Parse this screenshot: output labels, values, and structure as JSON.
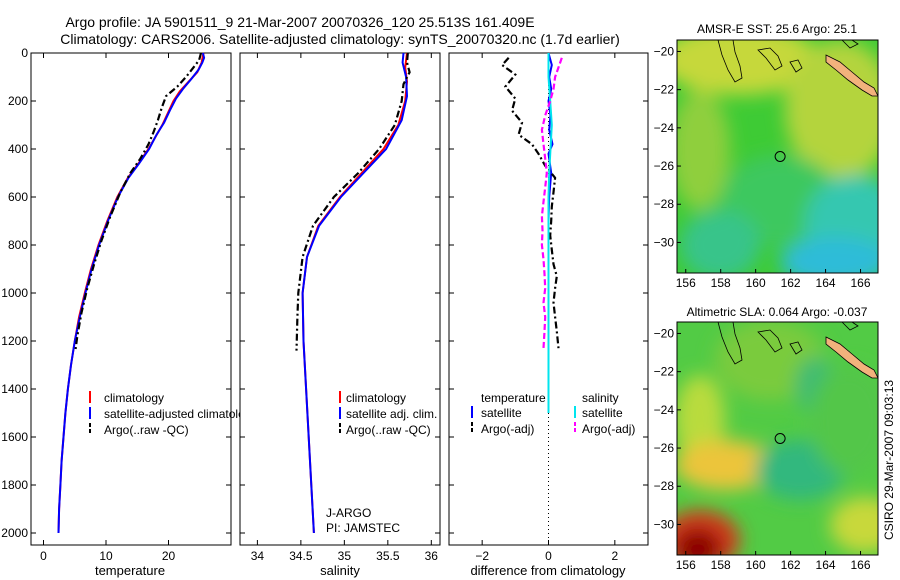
{
  "title_line1": "Argo profile: JA 5901511_9 21-Mar-2007 20070326_120 25.513S 161.409E",
  "title_line2": "Climatology: CARS2006. Satellite-adjusted climatology: synTS_20070320.nc (1.7d earlier)",
  "credit": "CSIRO 29-Mar-2007 09:03:13",
  "colors": {
    "climatology": "#ff0000",
    "satellite": "#0000ff",
    "argo": "#000000",
    "salinity_satellite": "#00e5ee",
    "salinity_argo": "#ff00ff"
  },
  "chart_data": [
    {
      "type": "line",
      "id": "temperature",
      "xlabel": "temperature",
      "ylabel": "",
      "xlim": [
        -2,
        30
      ],
      "ylim": [
        0,
        2050
      ],
      "y_reversed": true,
      "xticks": [
        0,
        10,
        20
      ],
      "yticks": [
        0,
        200,
        400,
        600,
        800,
        1000,
        1200,
        1400,
        1600,
        1800,
        2000
      ],
      "legend": {
        "placement": "lower-right",
        "items": [
          "climatology",
          "satellite-adjusted climatology",
          "Argo(..raw -QC)"
        ]
      },
      "series": [
        {
          "name": "climatology",
          "color": "#ff0000",
          "style": "solid",
          "points": [
            [
              25.6,
              0
            ],
            [
              25.3,
              40
            ],
            [
              24.6,
              80
            ],
            [
              23.2,
              120
            ],
            [
              21.8,
              160
            ],
            [
              20.8,
              200
            ],
            [
              19.9,
              250
            ],
            [
              19.0,
              300
            ],
            [
              17.9,
              350
            ],
            [
              16.8,
              400
            ],
            [
              15.2,
              460
            ],
            [
              13.5,
              520
            ],
            [
              11.8,
              600
            ],
            [
              10.2,
              700
            ],
            [
              8.8,
              800
            ],
            [
              7.6,
              900
            ],
            [
              6.6,
              1000
            ],
            [
              5.7,
              1100
            ],
            [
              5.0,
              1200
            ],
            [
              4.4,
              1300
            ],
            [
              3.9,
              1400
            ],
            [
              3.5,
              1500
            ],
            [
              3.2,
              1600
            ],
            [
              2.9,
              1700
            ],
            [
              2.7,
              1800
            ],
            [
              2.5,
              1900
            ],
            [
              2.4,
              2000
            ]
          ]
        },
        {
          "name": "satellite-adjusted climatology",
          "color": "#0000ff",
          "style": "solid",
          "points": [
            [
              25.5,
              0
            ],
            [
              25.7,
              20
            ],
            [
              25.4,
              40
            ],
            [
              24.8,
              70
            ],
            [
              23.6,
              110
            ],
            [
              22.3,
              150
            ],
            [
              21.2,
              190
            ],
            [
              20.2,
              240
            ],
            [
              19.3,
              290
            ],
            [
              18.1,
              340
            ],
            [
              16.9,
              400
            ],
            [
              15.3,
              460
            ],
            [
              13.6,
              520
            ],
            [
              11.9,
              600
            ],
            [
              10.3,
              700
            ],
            [
              8.9,
              800
            ],
            [
              7.7,
              900
            ],
            [
              6.7,
              1000
            ],
            [
              5.8,
              1100
            ],
            [
              5.0,
              1200
            ],
            [
              4.4,
              1300
            ],
            [
              3.9,
              1400
            ],
            [
              3.5,
              1500
            ],
            [
              3.2,
              1600
            ],
            [
              2.9,
              1700
            ],
            [
              2.7,
              1800
            ],
            [
              2.5,
              1900
            ],
            [
              2.4,
              2000
            ]
          ]
        },
        {
          "name": "Argo(..raw -QC)",
          "color": "#000000",
          "style": "dashdot",
          "points": [
            [
              25.2,
              0
            ],
            [
              24.9,
              30
            ],
            [
              24.0,
              60
            ],
            [
              22.8,
              100
            ],
            [
              21.4,
              140
            ],
            [
              19.6,
              180
            ],
            [
              18.9,
              230
            ],
            [
              18.3,
              280
            ],
            [
              17.6,
              330
            ],
            [
              16.8,
              380
            ],
            [
              15.5,
              440
            ],
            [
              13.9,
              500
            ],
            [
              12.3,
              580
            ],
            [
              10.7,
              680
            ],
            [
              9.3,
              780
            ],
            [
              8.1,
              880
            ],
            [
              7.0,
              980
            ],
            [
              6.1,
              1080
            ],
            [
              5.4,
              1180
            ],
            [
              5.1,
              1240
            ]
          ]
        }
      ]
    },
    {
      "type": "line",
      "id": "salinity",
      "xlabel": "salinity",
      "ylabel": "",
      "xlim": [
        33.8,
        36.1
      ],
      "ylim": [
        0,
        2050
      ],
      "y_reversed": true,
      "xticks": [
        34,
        34.5,
        35,
        35.5,
        36
      ],
      "legend": {
        "placement": "lower-right",
        "items": [
          "climatology",
          "satellite adj. clim.",
          "Argo(..raw -QC)"
        ]
      },
      "annotation_line1": "J-ARGO",
      "annotation_line2": "PI: JAMSTEC",
      "series": [
        {
          "name": "climatology",
          "color": "#ff0000",
          "style": "solid",
          "points": [
            [
              35.72,
              0
            ],
            [
              35.7,
              60
            ],
            [
              35.72,
              120
            ],
            [
              35.7,
              200
            ],
            [
              35.62,
              300
            ],
            [
              35.45,
              400
            ],
            [
              35.2,
              500
            ],
            [
              34.95,
              600
            ],
            [
              34.7,
              720
            ],
            [
              34.57,
              850
            ],
            [
              34.52,
              1000
            ],
            [
              34.53,
              1200
            ],
            [
              34.56,
              1400
            ],
            [
              34.59,
              1600
            ],
            [
              34.62,
              1800
            ],
            [
              34.65,
              2000
            ]
          ]
        },
        {
          "name": "satellite adj. clim.",
          "color": "#0000ff",
          "style": "solid",
          "points": [
            [
              35.68,
              0
            ],
            [
              35.67,
              40
            ],
            [
              35.71,
              100
            ],
            [
              35.72,
              180
            ],
            [
              35.66,
              280
            ],
            [
              35.48,
              400
            ],
            [
              35.22,
              500
            ],
            [
              34.96,
              600
            ],
            [
              34.71,
              720
            ],
            [
              34.57,
              850
            ],
            [
              34.52,
              1000
            ],
            [
              34.53,
              1200
            ],
            [
              34.56,
              1400
            ],
            [
              34.59,
              1600
            ],
            [
              34.62,
              1800
            ],
            [
              34.65,
              2000
            ]
          ]
        },
        {
          "name": "Argo(..raw -QC)",
          "color": "#000000",
          "style": "dashdot",
          "points": [
            [
              35.73,
              0
            ],
            [
              35.72,
              40
            ],
            [
              35.75,
              80
            ],
            [
              35.68,
              130
            ],
            [
              35.66,
              200
            ],
            [
              35.58,
              300
            ],
            [
              35.4,
              400
            ],
            [
              35.16,
              500
            ],
            [
              34.88,
              600
            ],
            [
              34.64,
              720
            ],
            [
              34.52,
              850
            ],
            [
              34.47,
              1000
            ],
            [
              34.46,
              1100
            ],
            [
              34.45,
              1240
            ]
          ]
        }
      ]
    },
    {
      "type": "line",
      "id": "difference",
      "xlabel": "difference from climatology",
      "ylabel": "",
      "xlim": [
        -3,
        3
      ],
      "ylim": [
        0,
        2050
      ],
      "y_reversed": true,
      "xticks": [
        -2,
        0,
        2
      ],
      "legend": {
        "placement": "lower-center",
        "header_left": "temperature",
        "header_right": "salinity",
        "items_left": [
          "satellite",
          "Argo(-adj)"
        ],
        "items_right": [
          "satellite",
          "Argo(-adj)"
        ]
      },
      "series": [
        {
          "name": "temperature satellite",
          "color": "#0000ff",
          "style": "solid",
          "points": [
            [
              0.0,
              0
            ],
            [
              0.1,
              50
            ],
            [
              0.02,
              100
            ],
            [
              0.08,
              150
            ],
            [
              0.0,
              200
            ],
            [
              0.06,
              260
            ],
            [
              0.02,
              320
            ],
            [
              0.12,
              380
            ],
            [
              0.0,
              420
            ],
            [
              0.08,
              500
            ],
            [
              0.02,
              600
            ],
            [
              0.0,
              700
            ],
            [
              0.0,
              1500
            ]
          ]
        },
        {
          "name": "temperature Argo(-adj)",
          "color": "#000000",
          "style": "dashdot",
          "points": [
            [
              -1.2,
              20
            ],
            [
              -1.4,
              50
            ],
            [
              -1.0,
              90
            ],
            [
              -1.3,
              140
            ],
            [
              -1.0,
              190
            ],
            [
              -1.1,
              240
            ],
            [
              -0.8,
              290
            ],
            [
              -0.9,
              340
            ],
            [
              -0.5,
              380
            ],
            [
              -0.3,
              420
            ],
            [
              -0.1,
              470
            ],
            [
              0.2,
              520
            ],
            [
              0.15,
              580
            ],
            [
              0.1,
              640
            ],
            [
              0.08,
              700
            ],
            [
              0.05,
              760
            ],
            [
              0.1,
              820
            ],
            [
              0.15,
              880
            ],
            [
              0.25,
              930
            ],
            [
              0.2,
              980
            ],
            [
              0.15,
              1040
            ],
            [
              0.2,
              1100
            ],
            [
              0.25,
              1160
            ],
            [
              0.3,
              1230
            ]
          ]
        },
        {
          "name": "salinity satellite",
          "color": "#00e5ee",
          "style": "solid",
          "points": [
            [
              0.0,
              0
            ],
            [
              0.0,
              100
            ],
            [
              0.05,
              200
            ],
            [
              0.1,
              300
            ],
            [
              0.06,
              400
            ],
            [
              0.02,
              500
            ],
            [
              0.0,
              600
            ],
            [
              0.0,
              700
            ],
            [
              0.0,
              1500
            ]
          ]
        },
        {
          "name": "salinity Argo(-adj)",
          "color": "#ff00ff",
          "style": "dash",
          "points": [
            [
              0.4,
              20
            ],
            [
              0.3,
              60
            ],
            [
              0.2,
              100
            ],
            [
              0.15,
              150
            ],
            [
              0.05,
              200
            ],
            [
              -0.1,
              260
            ],
            [
              -0.2,
              320
            ],
            [
              -0.15,
              380
            ],
            [
              -0.1,
              440
            ],
            [
              -0.05,
              500
            ],
            [
              -0.1,
              560
            ],
            [
              -0.15,
              620
            ],
            [
              -0.2,
              680
            ],
            [
              -0.18,
              740
            ],
            [
              -0.2,
              800
            ],
            [
              -0.15,
              860
            ],
            [
              -0.12,
              920
            ],
            [
              -0.1,
              980
            ],
            [
              -0.15,
              1040
            ],
            [
              -0.1,
              1100
            ],
            [
              -0.12,
              1160
            ],
            [
              -0.15,
              1230
            ]
          ]
        }
      ]
    },
    {
      "type": "heatmap",
      "id": "sst-map",
      "title": "AMSR-E SST: 25.6  Argo: 25.1",
      "xlim": [
        155.5,
        167
      ],
      "ylim": [
        -31.6,
        -19.4
      ],
      "xticks": [
        156,
        158,
        160,
        162,
        164,
        166
      ],
      "yticks": [
        -20,
        -22,
        -24,
        -26,
        -28,
        -30
      ],
      "marker": [
        161.4,
        -25.5
      ]
    },
    {
      "type": "heatmap",
      "id": "sla-map",
      "title": "Altimetric SLA: 0.064  Argo: -0.037",
      "xlim": [
        155.5,
        167
      ],
      "ylim": [
        -31.6,
        -19.4
      ],
      "xticks": [
        156,
        158,
        160,
        162,
        164,
        166
      ],
      "yticks": [
        -20,
        -22,
        -24,
        -26,
        -28,
        -30
      ],
      "marker": [
        161.4,
        -25.5
      ]
    }
  ]
}
